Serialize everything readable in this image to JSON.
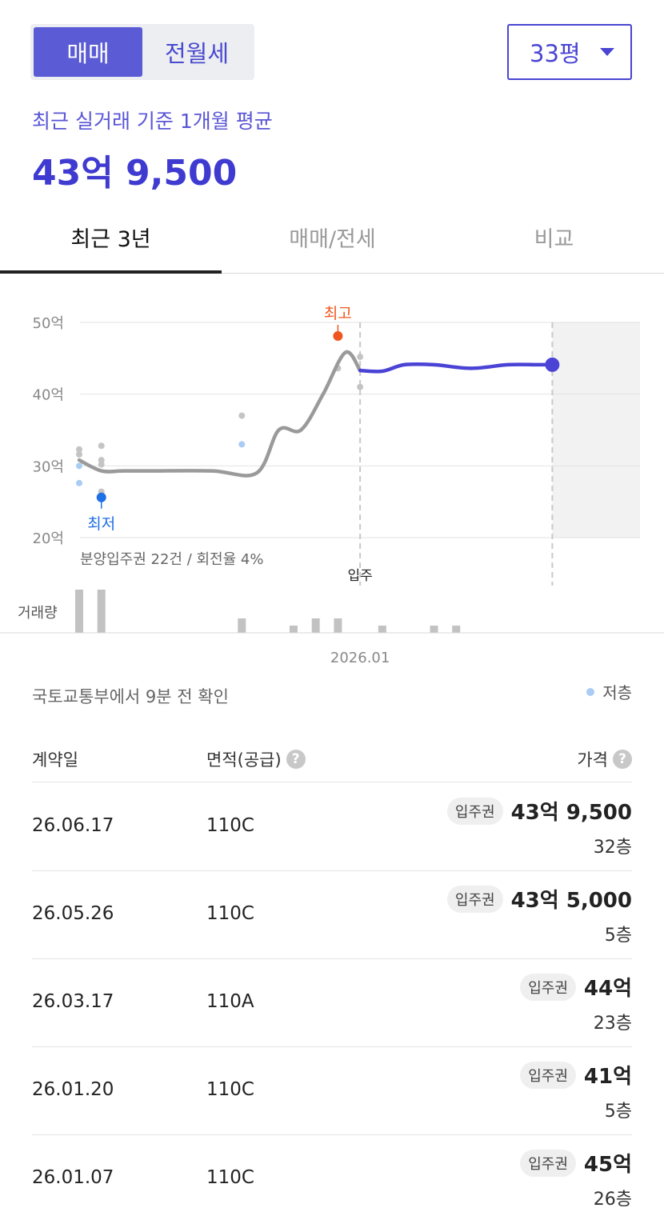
{
  "trade_toggle": {
    "buy": "매매",
    "rent": "전월세"
  },
  "area_select": {
    "value": "33평"
  },
  "summary": {
    "label": "최근 실거래 기준 1개월 평균",
    "value": "43억 9,500"
  },
  "tabs": [
    {
      "label": "최근 3년"
    },
    {
      "label": "매매/전세"
    },
    {
      "label": "비교"
    }
  ],
  "chart_data": {
    "type": "line",
    "y_unit": "억",
    "ylim": [
      20,
      50
    ],
    "yticks": [
      "50억",
      "40억",
      "30억",
      "20억"
    ],
    "ytick_values": [
      50,
      40,
      30,
      20
    ],
    "x_tick_label": "2026.01",
    "series": [
      {
        "x": [
          0,
          3,
          6,
          10,
          18,
          24,
          27,
          30,
          33,
          36,
          38,
          41,
          44,
          48,
          53,
          58,
          62,
          64
        ],
        "y": [
          30.8,
          29.3,
          29.3,
          29.3,
          29.3,
          29.0,
          35.0,
          35.0,
          40.0,
          45.8,
          43.3,
          43.2,
          44.1,
          44.1,
          43.6,
          44.1,
          44.1,
          44.1
        ]
      }
    ],
    "projected_from_x": 38,
    "trades": [
      {
        "x": 0,
        "y": 32.3,
        "low": false
      },
      {
        "x": 0,
        "y": 31.6,
        "low": false
      },
      {
        "x": 0,
        "y": 30.0,
        "low": true
      },
      {
        "x": 0,
        "y": 27.6,
        "low": true
      },
      {
        "x": 3,
        "y": 32.8,
        "low": false
      },
      {
        "x": 3,
        "y": 30.8,
        "low": false
      },
      {
        "x": 3,
        "y": 30.2,
        "low": false
      },
      {
        "x": 3,
        "y": 26.4,
        "low": false
      },
      {
        "x": 22,
        "y": 37.0,
        "low": false
      },
      {
        "x": 22,
        "y": 33.0,
        "low": true
      },
      {
        "x": 35,
        "y": 43.6,
        "low": false
      },
      {
        "x": 38,
        "y": 45.2,
        "low": false
      },
      {
        "x": 38,
        "y": 41.0,
        "low": false
      }
    ],
    "highest": {
      "label": "최고",
      "x": 35,
      "y": 48.1
    },
    "lowest": {
      "label": "최저",
      "x": 3,
      "y": 25.6
    },
    "current_point": {
      "x": 64,
      "y": 44.1
    },
    "movein": {
      "label": "입주",
      "x": 38
    },
    "presale_note": "분양입주권 22건 / 회전율 4%",
    "volume_label": "거래량",
    "volume_bars": [
      {
        "x": 0,
        "v": 6
      },
      {
        "x": 3,
        "v": 6
      },
      {
        "x": 22,
        "v": 2
      },
      {
        "x": 29,
        "v": 1
      },
      {
        "x": 32,
        "v": 2
      },
      {
        "x": 35,
        "v": 2
      },
      {
        "x": 41,
        "v": 1
      },
      {
        "x": 48,
        "v": 1
      },
      {
        "x": 51,
        "v": 1
      }
    ]
  },
  "source_text": "국토교통부에서 9분 전 확인",
  "legend": {
    "low_floor": "저층"
  },
  "table": {
    "headers": {
      "date": "계약일",
      "area": "면적(공급)",
      "price": "가격",
      "help": "?"
    },
    "rows": [
      {
        "date": "26.06.17",
        "area": "110C",
        "badge": "입주권",
        "price": "43억 9,500",
        "floor": "32층"
      },
      {
        "date": "26.05.26",
        "area": "110C",
        "badge": "입주권",
        "price": "43억 5,000",
        "floor": "5층"
      },
      {
        "date": "26.03.17",
        "area": "110A",
        "badge": "입주권",
        "price": "44억",
        "floor": "23층"
      },
      {
        "date": "26.01.20",
        "area": "110C",
        "badge": "입주권",
        "price": "41억",
        "floor": "5층"
      },
      {
        "date": "26.01.07",
        "area": "110C",
        "badge": "입주권",
        "price": "45억",
        "floor": "26층"
      }
    ]
  },
  "colors": {
    "accent": "#4a45d2",
    "line_past": "#9a9a9a",
    "line_recent": "#4b43d6",
    "high": "#f0561f",
    "low": "#1f6fe6",
    "low_floor_dot": "#a9ccf4"
  }
}
